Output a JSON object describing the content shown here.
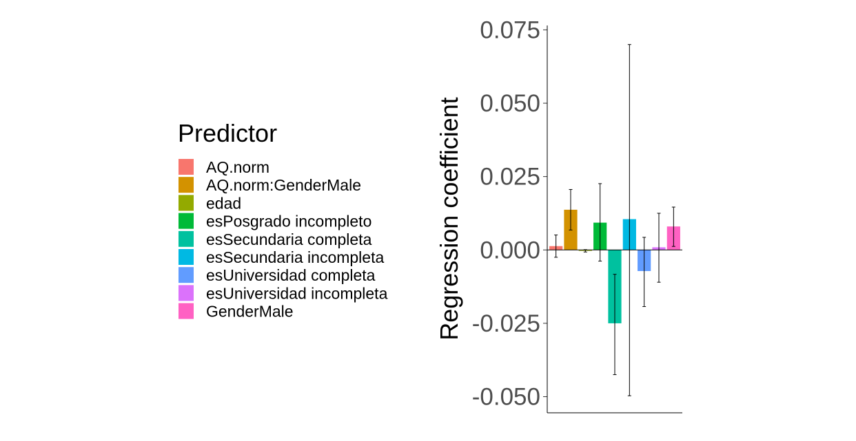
{
  "chart_data": {
    "type": "bar",
    "ylabel": "Regression coefficient",
    "xlabel": "",
    "ylim": [
      -0.0555,
      0.0765
    ],
    "yticks": [
      "0.075",
      "0.050",
      "0.025",
      "0.000",
      "-0.025",
      "-0.050"
    ],
    "ytick_values": [
      0.075,
      0.05,
      0.025,
      0,
      -0.025,
      -0.05
    ],
    "legend": {
      "title": "Predictor",
      "position": "left"
    },
    "series": [
      {
        "name": "AQ.norm",
        "value": 0.0013,
        "ci_low": -0.0025,
        "ci_high": 0.0051,
        "color": "#F8766D"
      },
      {
        "name": "AQ.norm:GenderMale",
        "value": 0.0137,
        "ci_low": 0.0068,
        "ci_high": 0.0206,
        "color": "#D39200"
      },
      {
        "name": "edad",
        "value": -0.0003,
        "ci_low": -0.0007,
        "ci_high": 0.0001,
        "color": "#93AA00"
      },
      {
        "name": "esPosgrado incompleto",
        "value": 0.0093,
        "ci_low": -0.0038,
        "ci_high": 0.0226,
        "color": "#00BA38"
      },
      {
        "name": "esSecundaria completa",
        "value": -0.025,
        "ci_low": -0.0425,
        "ci_high": -0.0083,
        "color": "#00C19F"
      },
      {
        "name": "esSecundaria incompleta",
        "value": 0.0105,
        "ci_low": -0.0497,
        "ci_high": 0.07,
        "color": "#00B9E3"
      },
      {
        "name": "esUniversidad completa",
        "value": -0.0072,
        "ci_low": -0.0193,
        "ci_high": 0.0043,
        "color": "#619CFF"
      },
      {
        "name": "esUniversidad incompleta",
        "value": 0.0009,
        "ci_low": -0.011,
        "ci_high": 0.0125,
        "color": "#DB72FB"
      },
      {
        "name": "GenderMale",
        "value": 0.008,
        "ci_low": 0.0012,
        "ci_high": 0.0146,
        "color": "#FF61C3"
      }
    ]
  }
}
